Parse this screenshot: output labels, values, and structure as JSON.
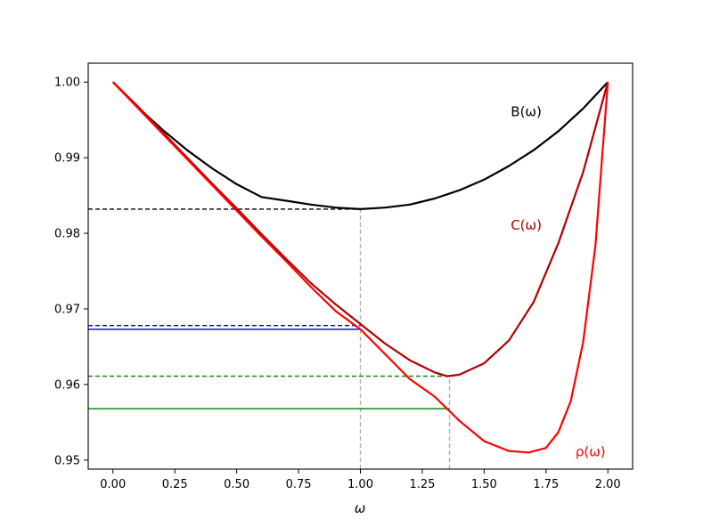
{
  "chart_data": {
    "type": "line",
    "xlabel": "ω",
    "ylabel": "",
    "xlim": [
      -0.1,
      2.1
    ],
    "ylim": [
      0.9488,
      1.0025
    ],
    "x_ticks": [
      "0.00",
      "0.25",
      "0.50",
      "0.75",
      "1.00",
      "1.25",
      "1.50",
      "1.75",
      "2.00"
    ],
    "y_ticks": [
      "0.95",
      "0.96",
      "0.97",
      "0.98",
      "0.99",
      "1.00"
    ],
    "grid": false,
    "series": [
      {
        "name": "B(ω)",
        "color": "#000000",
        "label_text": "B(ω)",
        "label_at": [
          1.67,
          0.9955
        ],
        "x": [
          0.0,
          0.1,
          0.2,
          0.3,
          0.4,
          0.5,
          0.6,
          0.7,
          0.8,
          0.9,
          1.0,
          1.1,
          1.2,
          1.3,
          1.4,
          1.5,
          1.6,
          1.7,
          1.8,
          1.9,
          2.0
        ],
        "y": [
          1.0,
          0.9967,
          0.9937,
          0.991,
          0.9886,
          0.9865,
          0.9848,
          0.9843,
          0.9838,
          0.9834,
          0.9832,
          0.9834,
          0.9838,
          0.9846,
          0.9857,
          0.9871,
          0.9889,
          0.991,
          0.9935,
          0.9965,
          1.0
        ]
      },
      {
        "name": "C(ω)",
        "color": "#b00000",
        "label_text": "C(ω)",
        "label_at": [
          1.67,
          0.9805
        ],
        "x": [
          0.0,
          0.1,
          0.2,
          0.3,
          0.4,
          0.5,
          0.6,
          0.7,
          0.8,
          0.9,
          1.0,
          1.1,
          1.2,
          1.3,
          1.35,
          1.4,
          1.5,
          1.6,
          1.7,
          1.8,
          1.9,
          2.0
        ],
        "y": [
          1.0,
          0.9968,
          0.9934,
          0.99,
          0.9866,
          0.9833,
          0.9799,
          0.9766,
          0.9734,
          0.9706,
          0.968,
          0.9654,
          0.9632,
          0.9616,
          0.9611,
          0.9613,
          0.9628,
          0.9658,
          0.9709,
          0.9787,
          0.9881,
          1.0
        ]
      },
      {
        "name": "ρ(ω)",
        "color": "#ff0000",
        "label_text": "ρ(ω)",
        "label_at": [
          1.93,
          0.9505
        ],
        "x": [
          0.0,
          0.1,
          0.2,
          0.3,
          0.4,
          0.5,
          0.6,
          0.7,
          0.8,
          0.9,
          1.0,
          1.1,
          1.2,
          1.3,
          1.35,
          1.4,
          1.5,
          1.6,
          1.68,
          1.75,
          1.8,
          1.85,
          1.9,
          1.95,
          2.0
        ],
        "y": [
          1.0,
          0.9966,
          0.9932,
          0.9898,
          0.9864,
          0.983,
          0.9796,
          0.9763,
          0.9729,
          0.9697,
          0.9673,
          0.964,
          0.9607,
          0.9584,
          0.9568,
          0.9552,
          0.9525,
          0.9512,
          0.951,
          0.9516,
          0.9537,
          0.9578,
          0.9656,
          0.9784,
          1.0
        ]
      }
    ],
    "reference_lines": [
      {
        "kind": "h",
        "y": 0.9832,
        "x_to": 1.0,
        "color": "#000000",
        "dashed": true
      },
      {
        "kind": "v",
        "x": 1.0,
        "y_to": 0.9832,
        "color": "#b0b0b0",
        "dashed": true
      },
      {
        "kind": "v",
        "x": 1.36,
        "y_to": 0.9611,
        "color": "#b0b0b0",
        "dashed": true
      },
      {
        "kind": "h",
        "y": 0.9678,
        "x_to": 1.0,
        "color": "#0000cc",
        "dashed": true
      },
      {
        "kind": "h",
        "y": 0.9673,
        "x_to": 1.0,
        "color": "#0000cc",
        "dashed": false
      },
      {
        "kind": "h",
        "y": 0.9611,
        "x_to": 1.36,
        "color": "#008000",
        "dashed": true
      },
      {
        "kind": "h",
        "y": 0.9568,
        "x_to": 1.36,
        "color": "#008000",
        "dashed": false
      }
    ]
  }
}
